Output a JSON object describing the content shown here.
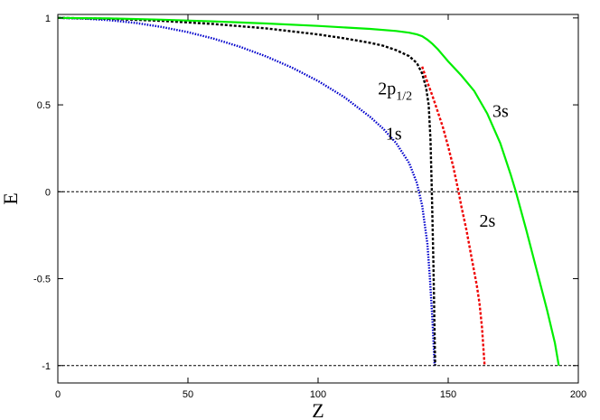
{
  "chart_data": {
    "type": "line",
    "xlabel": "Z",
    "ylabel": "E",
    "xlim": [
      0,
      200
    ],
    "ylim": [
      -1.1,
      1.02
    ],
    "x_ticks": [
      0,
      50,
      100,
      150,
      200
    ],
    "x_tick_labels": [
      "0",
      "50",
      "100",
      "150",
      "200"
    ],
    "y_ticks": [
      -1,
      -0.5,
      0,
      0.5,
      1
    ],
    "y_tick_labels": [
      "-1",
      "-0.5",
      "0",
      "0.5",
      "1"
    ],
    "grid": false,
    "legend": "none",
    "reference_lines": [
      {
        "y": 0,
        "style": "dashed",
        "color": "#000000"
      },
      {
        "y": -1,
        "style": "dashed",
        "color": "#000000"
      }
    ],
    "series": [
      {
        "name": "1s",
        "color": "#0000cc",
        "style": "dotted",
        "label": {
          "base": "1s",
          "sub": "",
          "x": 126,
          "y": 0.3
        },
        "points": [
          [
            0,
            1.0
          ],
          [
            10,
            0.996
          ],
          [
            20,
            0.987
          ],
          [
            30,
            0.971
          ],
          [
            40,
            0.948
          ],
          [
            50,
            0.918
          ],
          [
            60,
            0.88
          ],
          [
            70,
            0.834
          ],
          [
            80,
            0.779
          ],
          [
            90,
            0.714
          ],
          [
            100,
            0.637
          ],
          [
            110,
            0.545
          ],
          [
            120,
            0.431
          ],
          [
            125,
            0.363
          ],
          [
            130,
            0.28
          ],
          [
            135,
            0.165
          ],
          [
            138,
            0.05
          ],
          [
            140,
            -0.08
          ],
          [
            142,
            -0.3
          ],
          [
            143,
            -0.5
          ],
          [
            144,
            -0.75
          ],
          [
            144.8,
            -1.0
          ]
        ]
      },
      {
        "name": "2p1/2",
        "color": "#000000",
        "style": "dashed",
        "label": {
          "base": "2p",
          "sub": "1/2",
          "x": 123,
          "y": 0.56
        },
        "points": [
          [
            0,
            1.0
          ],
          [
            20,
            0.995
          ],
          [
            40,
            0.983
          ],
          [
            60,
            0.965
          ],
          [
            80,
            0.94
          ],
          [
            100,
            0.905
          ],
          [
            110,
            0.883
          ],
          [
            120,
            0.857
          ],
          [
            125,
            0.84
          ],
          [
            130,
            0.815
          ],
          [
            135,
            0.78
          ],
          [
            138,
            0.74
          ],
          [
            140,
            0.68
          ],
          [
            141.5,
            0.6
          ],
          [
            142.5,
            0.5
          ],
          [
            143.2,
            0.3
          ],
          [
            143.7,
            0.0
          ],
          [
            144.3,
            -0.4
          ],
          [
            145,
            -1.0
          ]
        ]
      },
      {
        "name": "2s",
        "color": "#ee0000",
        "style": "dashed",
        "label": {
          "base": "2s",
          "sub": "",
          "x": 162,
          "y": -0.2
        },
        "points": [
          [
            140,
            0.72
          ],
          [
            142,
            0.63
          ],
          [
            144,
            0.55
          ],
          [
            146,
            0.46
          ],
          [
            148,
            0.37
          ],
          [
            150,
            0.26
          ],
          [
            152,
            0.14
          ],
          [
            153,
            0.07
          ],
          [
            154,
            0.0
          ],
          [
            155,
            -0.08
          ],
          [
            157,
            -0.22
          ],
          [
            159,
            -0.38
          ],
          [
            161,
            -0.54
          ],
          [
            162,
            -0.64
          ],
          [
            163,
            -0.78
          ],
          [
            164,
            -1.0
          ]
        ]
      },
      {
        "name": "3s",
        "color": "#00ee00",
        "style": "solid",
        "label": {
          "base": "3s",
          "sub": "",
          "x": 167,
          "y": 0.43
        },
        "points": [
          [
            0,
            1.0
          ],
          [
            20,
            0.997
          ],
          [
            40,
            0.99
          ],
          [
            60,
            0.98
          ],
          [
            80,
            0.968
          ],
          [
            100,
            0.954
          ],
          [
            120,
            0.937
          ],
          [
            130,
            0.925
          ],
          [
            135,
            0.915
          ],
          [
            138,
            0.905
          ],
          [
            140,
            0.895
          ],
          [
            142,
            0.875
          ],
          [
            144,
            0.85
          ],
          [
            146,
            0.82
          ],
          [
            148,
            0.785
          ],
          [
            150,
            0.75
          ],
          [
            155,
            0.67
          ],
          [
            160,
            0.58
          ],
          [
            165,
            0.45
          ],
          [
            170,
            0.28
          ],
          [
            174,
            0.1
          ],
          [
            176,
            0.0
          ],
          [
            180,
            -0.22
          ],
          [
            184,
            -0.45
          ],
          [
            188,
            -0.68
          ],
          [
            191,
            -0.87
          ],
          [
            192.5,
            -1.0
          ]
        ]
      }
    ]
  }
}
